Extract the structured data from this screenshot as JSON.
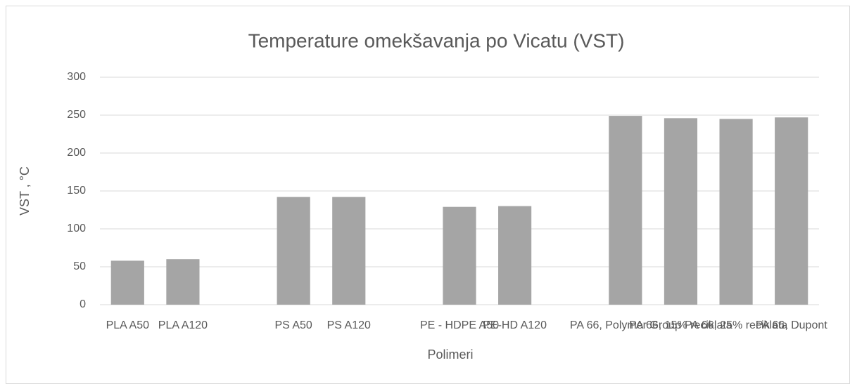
{
  "chart_data": {
    "type": "bar",
    "title": "Temperature omekšavanja po Vicatu (VST)",
    "x_label": "Polimeri",
    "y_label": "VST , °C",
    "categories": [
      "PLA A50",
      "PLA A120",
      null,
      "PS A50",
      "PS A120",
      null,
      "PE - HDPE A50",
      "PE-HD A120",
      null,
      "PA 66, Polymer Group",
      "PA 66, 15% reciklata",
      "PA 66, 25% reciklata",
      "PA 66, Dupont"
    ],
    "values": [
      58,
      60,
      null,
      142,
      142,
      null,
      129,
      130,
      null,
      249,
      246,
      245,
      247
    ],
    "color": "#a5a5a5",
    "ylim": [
      0,
      300
    ],
    "yticks": [
      0,
      50,
      100,
      150,
      200,
      250,
      300
    ],
    "grid": true
  }
}
